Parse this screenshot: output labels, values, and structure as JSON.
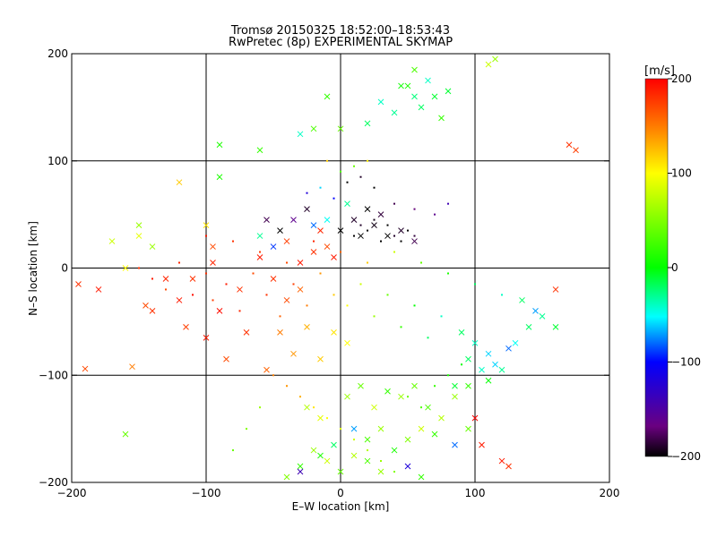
{
  "chart_data": {
    "type": "scatter",
    "title_line1": "Tromsø 20150325 18:52:00–18:53:43",
    "title_line2": "RwPretec (8p) EXPERIMENTAL SKYMAP",
    "xlabel": "E–W location [km]",
    "ylabel": "N–S location [km]",
    "xlim": [
      -200,
      200
    ],
    "ylim": [
      -200,
      200
    ],
    "xticks": [
      -200,
      -100,
      0,
      100,
      200
    ],
    "yticks": [
      -200,
      -100,
      0,
      100,
      200
    ],
    "xtick_labels": [
      "−200",
      "−100",
      "0",
      "100",
      "200"
    ],
    "ytick_labels": [
      "−200",
      "−100",
      "0",
      "100",
      "200"
    ],
    "grid": true,
    "colorbar": {
      "label": "[m/s]",
      "range": [
        -200,
        200
      ],
      "ticks": [
        200,
        100,
        0,
        -100,
        -200
      ],
      "tick_labels": [
        "200",
        "100",
        "0",
        "−100",
        "−200"
      ],
      "colormap": [
        "#000000",
        "#6a0080",
        "#0000ff",
        "#00ffff",
        "#00ff00",
        "#ffff00",
        "#ff8000",
        "#ff0000"
      ]
    },
    "series": [
      {
        "marker": "x",
        "points": [
          [
            -190,
            -94,
            170
          ],
          [
            -155,
            -92,
            150
          ],
          [
            -140,
            -40,
            180
          ],
          [
            -120,
            -30,
            190
          ],
          [
            -110,
            -10,
            180
          ],
          [
            -95,
            5,
            185
          ],
          [
            -90,
            -40,
            195
          ],
          [
            -75,
            -20,
            180
          ],
          [
            -60,
            10,
            190
          ],
          [
            -50,
            -10,
            180
          ],
          [
            -40,
            -30,
            170
          ],
          [
            -30,
            -20,
            160
          ],
          [
            -160,
            -155,
            40
          ],
          [
            -170,
            25,
            80
          ],
          [
            -150,
            40,
            60
          ],
          [
            -145,
            -35,
            170
          ],
          [
            -180,
            -20,
            190
          ],
          [
            -195,
            -15,
            180
          ],
          [
            -130,
            -10,
            185
          ],
          [
            -115,
            -55,
            175
          ],
          [
            -100,
            -65,
            190
          ],
          [
            -85,
            -85,
            170
          ],
          [
            -70,
            -60,
            180
          ],
          [
            -55,
            -95,
            160
          ],
          [
            -45,
            -60,
            150
          ],
          [
            -35,
            -80,
            140
          ],
          [
            -25,
            -55,
            130
          ],
          [
            -15,
            -85,
            120
          ],
          [
            -5,
            -60,
            110
          ],
          [
            5,
            -70,
            100
          ],
          [
            -40,
            -195,
            50
          ],
          [
            -30,
            -185,
            20
          ],
          [
            -20,
            -170,
            60
          ],
          [
            -10,
            -180,
            80
          ],
          [
            0,
            -190,
            40
          ],
          [
            10,
            -175,
            70
          ],
          [
            20,
            -160,
            30
          ],
          [
            30,
            -150,
            60
          ],
          [
            40,
            -170,
            10
          ],
          [
            50,
            -160,
            50
          ],
          [
            60,
            -150,
            80
          ],
          [
            70,
            -155,
            20
          ],
          [
            -25,
            -130,
            70
          ],
          [
            -15,
            -140,
            90
          ],
          [
            5,
            -120,
            60
          ],
          [
            15,
            -110,
            40
          ],
          [
            25,
            -130,
            80
          ],
          [
            35,
            -115,
            20
          ],
          [
            45,
            -120,
            60
          ],
          [
            55,
            -110,
            40
          ],
          [
            65,
            -130,
            30
          ],
          [
            75,
            -140,
            70
          ],
          [
            85,
            -120,
            60
          ],
          [
            95,
            -110,
            20
          ],
          [
            -90,
            115,
            10
          ],
          [
            -60,
            110,
            20
          ],
          [
            -30,
            125,
            -40
          ],
          [
            -20,
            130,
            30
          ],
          [
            -10,
            160,
            20
          ],
          [
            0,
            130,
            40
          ],
          [
            20,
            135,
            -20
          ],
          [
            30,
            155,
            -40
          ],
          [
            40,
            145,
            -30
          ],
          [
            50,
            170,
            10
          ],
          [
            55,
            185,
            30
          ],
          [
            60,
            150,
            -20
          ],
          [
            70,
            160,
            -10
          ],
          [
            65,
            175,
            -40
          ],
          [
            55,
            160,
            -25
          ],
          [
            45,
            170,
            5
          ],
          [
            75,
            140,
            20
          ],
          [
            80,
            165,
            -10
          ],
          [
            110,
            190,
            80
          ],
          [
            115,
            195,
            60
          ],
          [
            -90,
            85,
            10
          ],
          [
            -100,
            40,
            110
          ],
          [
            -120,
            80,
            120
          ],
          [
            -95,
            20,
            170
          ],
          [
            170,
            115,
            180
          ],
          [
            175,
            110,
            175
          ],
          [
            160,
            -20,
            180
          ],
          [
            -140,
            20,
            60
          ],
          [
            -150,
            30,
            90
          ],
          [
            -160,
            0,
            100
          ],
          [
            -10,
            20,
            170
          ],
          [
            -20,
            15,
            180
          ],
          [
            -30,
            5,
            190
          ],
          [
            -40,
            25,
            175
          ],
          [
            -15,
            35,
            185
          ],
          [
            -5,
            10,
            190
          ],
          [
            0,
            35,
            -200
          ],
          [
            10,
            45,
            -190
          ],
          [
            15,
            30,
            -200
          ],
          [
            25,
            40,
            -195
          ],
          [
            35,
            30,
            -200
          ],
          [
            45,
            35,
            -190
          ],
          [
            55,
            25,
            -180
          ],
          [
            20,
            55,
            -200
          ],
          [
            30,
            50,
            -185
          ],
          [
            -10,
            45,
            -50
          ],
          [
            -20,
            40,
            -80
          ],
          [
            5,
            60,
            -30
          ],
          [
            -25,
            55,
            -190
          ],
          [
            -35,
            45,
            -160
          ],
          [
            -60,
            30,
            -30
          ],
          [
            -50,
            20,
            -90
          ],
          [
            -45,
            35,
            -200
          ],
          [
            -55,
            45,
            -180
          ],
          [
            90,
            -60,
            -20
          ],
          [
            100,
            -70,
            -40
          ],
          [
            110,
            -80,
            -60
          ],
          [
            120,
            -95,
            -30
          ],
          [
            130,
            -70,
            -50
          ],
          [
            140,
            -55,
            -20
          ],
          [
            145,
            -40,
            -70
          ],
          [
            150,
            -45,
            -30
          ],
          [
            160,
            -55,
            -10
          ],
          [
            135,
            -30,
            -20
          ],
          [
            125,
            -75,
            -80
          ],
          [
            115,
            -90,
            -60
          ],
          [
            95,
            -85,
            -20
          ],
          [
            105,
            -95,
            -40
          ],
          [
            85,
            -110,
            -10
          ],
          [
            110,
            -105,
            0
          ],
          [
            120,
            -180,
            190
          ],
          [
            125,
            -185,
            180
          ],
          [
            100,
            -140,
            200
          ],
          [
            105,
            -165,
            190
          ],
          [
            85,
            -165,
            -80
          ],
          [
            95,
            -150,
            40
          ],
          [
            50,
            -185,
            -120
          ],
          [
            -30,
            -190,
            -140
          ],
          [
            10,
            -150,
            -70
          ],
          [
            -5,
            -165,
            -20
          ],
          [
            -15,
            -175,
            10
          ],
          [
            20,
            -180,
            30
          ],
          [
            30,
            -190,
            60
          ],
          [
            60,
            -195,
            20
          ]
        ]
      },
      {
        "marker": "dot",
        "points": [
          [
            -150,
            0,
            180
          ],
          [
            -140,
            -10,
            190
          ],
          [
            -130,
            -20,
            170
          ],
          [
            -120,
            5,
            185
          ],
          [
            -110,
            -25,
            195
          ],
          [
            -100,
            -5,
            180
          ],
          [
            -95,
            -30,
            175
          ],
          [
            -85,
            -15,
            190
          ],
          [
            -75,
            -40,
            185
          ],
          [
            -65,
            -5,
            170
          ],
          [
            -55,
            -25,
            180
          ],
          [
            -45,
            -45,
            160
          ],
          [
            -35,
            -15,
            175
          ],
          [
            -25,
            -35,
            150
          ],
          [
            -15,
            -5,
            140
          ],
          [
            -5,
            -25,
            120
          ],
          [
            5,
            -35,
            100
          ],
          [
            15,
            -15,
            80
          ],
          [
            25,
            -45,
            60
          ],
          [
            35,
            -25,
            40
          ],
          [
            45,
            -55,
            20
          ],
          [
            55,
            -35,
            0
          ],
          [
            65,
            -65,
            -20
          ],
          [
            75,
            -45,
            -40
          ],
          [
            -100,
            30,
            190
          ],
          [
            -80,
            25,
            180
          ],
          [
            -60,
            15,
            175
          ],
          [
            -40,
            5,
            170
          ],
          [
            -20,
            25,
            185
          ],
          [
            0,
            15,
            160
          ],
          [
            20,
            5,
            120
          ],
          [
            40,
            15,
            80
          ],
          [
            60,
            5,
            40
          ],
          [
            80,
            -5,
            10
          ],
          [
            100,
            -15,
            -20
          ],
          [
            120,
            -25,
            -40
          ],
          [
            10,
            30,
            -200
          ],
          [
            20,
            35,
            -200
          ],
          [
            30,
            25,
            -200
          ],
          [
            40,
            30,
            -190
          ],
          [
            50,
            35,
            -200
          ],
          [
            25,
            45,
            -195
          ],
          [
            35,
            40,
            -200
          ],
          [
            15,
            40,
            -190
          ],
          [
            45,
            25,
            -200
          ],
          [
            55,
            30,
            -185
          ],
          [
            5,
            80,
            -200
          ],
          [
            15,
            85,
            -190
          ],
          [
            25,
            75,
            -200
          ],
          [
            40,
            60,
            -180
          ],
          [
            55,
            55,
            -170
          ],
          [
            70,
            50,
            -160
          ],
          [
            80,
            60,
            -140
          ],
          [
            -5,
            65,
            -100
          ],
          [
            -15,
            75,
            -60
          ],
          [
            -25,
            70,
            -120
          ],
          [
            0,
            90,
            30
          ],
          [
            10,
            95,
            40
          ],
          [
            -10,
            100,
            120
          ],
          [
            20,
            100,
            110
          ],
          [
            -50,
            -100,
            150
          ],
          [
            -40,
            -110,
            140
          ],
          [
            -30,
            -120,
            130
          ],
          [
            -20,
            -130,
            110
          ],
          [
            -10,
            -140,
            100
          ],
          [
            0,
            -150,
            90
          ],
          [
            10,
            -160,
            80
          ],
          [
            20,
            -170,
            70
          ],
          [
            30,
            -180,
            60
          ],
          [
            40,
            -190,
            50
          ],
          [
            50,
            -120,
            40
          ],
          [
            60,
            -130,
            30
          ],
          [
            70,
            -110,
            20
          ],
          [
            80,
            -100,
            10
          ],
          [
            90,
            -90,
            0
          ],
          [
            -60,
            -130,
            60
          ],
          [
            -70,
            -150,
            50
          ],
          [
            -80,
            -170,
            40
          ]
        ]
      }
    ]
  }
}
